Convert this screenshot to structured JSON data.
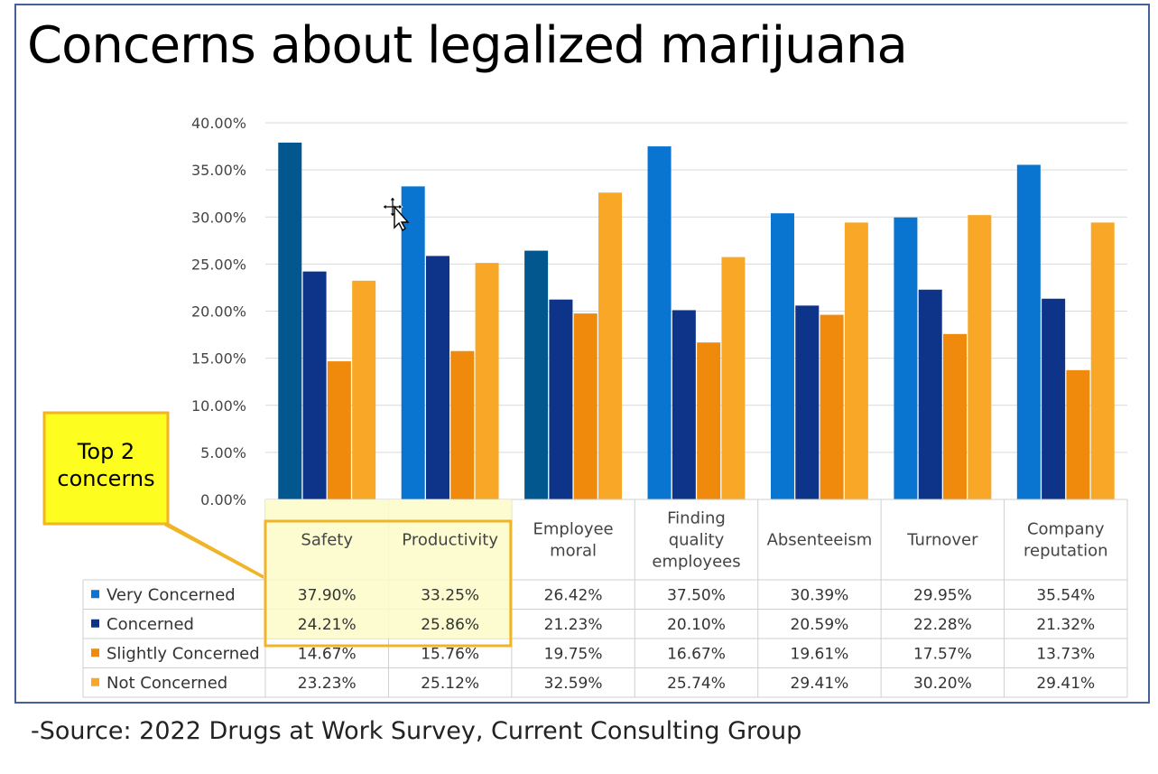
{
  "title": "Concerns about legalized marijuana",
  "source": "-Source: 2022 Drugs at Work Survey, Current Consulting Group",
  "callout": {
    "lines": [
      "Top 2",
      "concerns"
    ],
    "fill": "#fdfd1f",
    "border": "#f0b428"
  },
  "chart_data": {
    "type": "bar",
    "title": "Concerns about legalized marijuana",
    "xlabel": "",
    "ylabel": "",
    "ylim": [
      0,
      40
    ],
    "yticks": [
      "0.00%",
      "5.00%",
      "10.00%",
      "15.00%",
      "20.00%",
      "25.00%",
      "30.00%",
      "35.00%",
      "40.00%"
    ],
    "grid": true,
    "legend": "data-table-left",
    "categories": [
      [
        "Safety"
      ],
      [
        "Productivity"
      ],
      [
        "Employee",
        "moral"
      ],
      [
        "Finding",
        "quality",
        "employees"
      ],
      [
        "Absenteeism"
      ],
      [
        "Turnover"
      ],
      [
        "Company",
        "reputation"
      ]
    ],
    "series": [
      {
        "name": "Very Concerned",
        "color": "#0a75d1",
        "values": [
          37.9,
          33.25,
          26.42,
          37.5,
          30.39,
          29.95,
          35.54
        ],
        "labels": [
          "37.90%",
          "33.25%",
          "26.42%",
          "37.50%",
          "30.39%",
          "29.95%",
          "35.54%"
        ]
      },
      {
        "name": "Concerned",
        "color": "#0d3488",
        "values": [
          24.21,
          25.86,
          21.23,
          20.1,
          20.59,
          22.28,
          21.32
        ],
        "labels": [
          "24.21%",
          "25.86%",
          "21.23%",
          "20.10%",
          "20.59%",
          "22.28%",
          "21.32%"
        ]
      },
      {
        "name": "Slightly Concerned",
        "color": "#ef8a0c",
        "values": [
          14.67,
          15.76,
          19.75,
          16.67,
          19.61,
          17.57,
          13.73
        ],
        "labels": [
          "14.67%",
          "15.76%",
          "19.75%",
          "16.67%",
          "19.61%",
          "17.57%",
          "13.73%"
        ]
      },
      {
        "name": "Not Concerned",
        "color": "#f8a826",
        "values": [
          23.23,
          25.12,
          32.59,
          25.74,
          29.41,
          30.2,
          29.41
        ],
        "labels": [
          "23.23%",
          "25.12%",
          "32.59%",
          "25.74%",
          "29.41%",
          "30.20%",
          "29.41%"
        ]
      }
    ],
    "highlight_color": "#03578f",
    "highlighted_bars": [
      [
        0,
        0
      ],
      [
        2,
        0
      ]
    ]
  }
}
